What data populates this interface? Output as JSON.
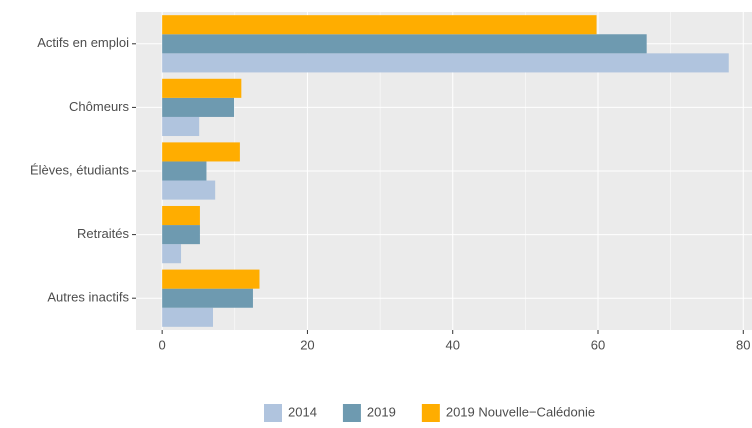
{
  "chart_data": {
    "type": "barh",
    "categories": [
      "Actifs en emploi",
      "Chômeurs",
      "Élèves, étudiants",
      "Retraités",
      "Autres inactifs"
    ],
    "series": [
      {
        "name": "2014",
        "color": "#b0c4de",
        "values": [
          78,
          5.1,
          7.3,
          2.6,
          7.0
        ]
      },
      {
        "name": "2019",
        "color": "#6e9ab0",
        "values": [
          66.7,
          9.9,
          6.1,
          5.2,
          12.5
        ]
      },
      {
        "name": "2019 Nouvelle−Calédonie",
        "color": "#ffad00",
        "values": [
          59.8,
          10.9,
          10.7,
          5.2,
          13.4
        ]
      }
    ],
    "xlim": [
      -3.6,
      81.2
    ],
    "xticks": [
      0,
      20,
      40,
      60,
      80
    ],
    "xminorticks": [
      10,
      30,
      50,
      70
    ],
    "grid": true,
    "legend": "bottom"
  }
}
